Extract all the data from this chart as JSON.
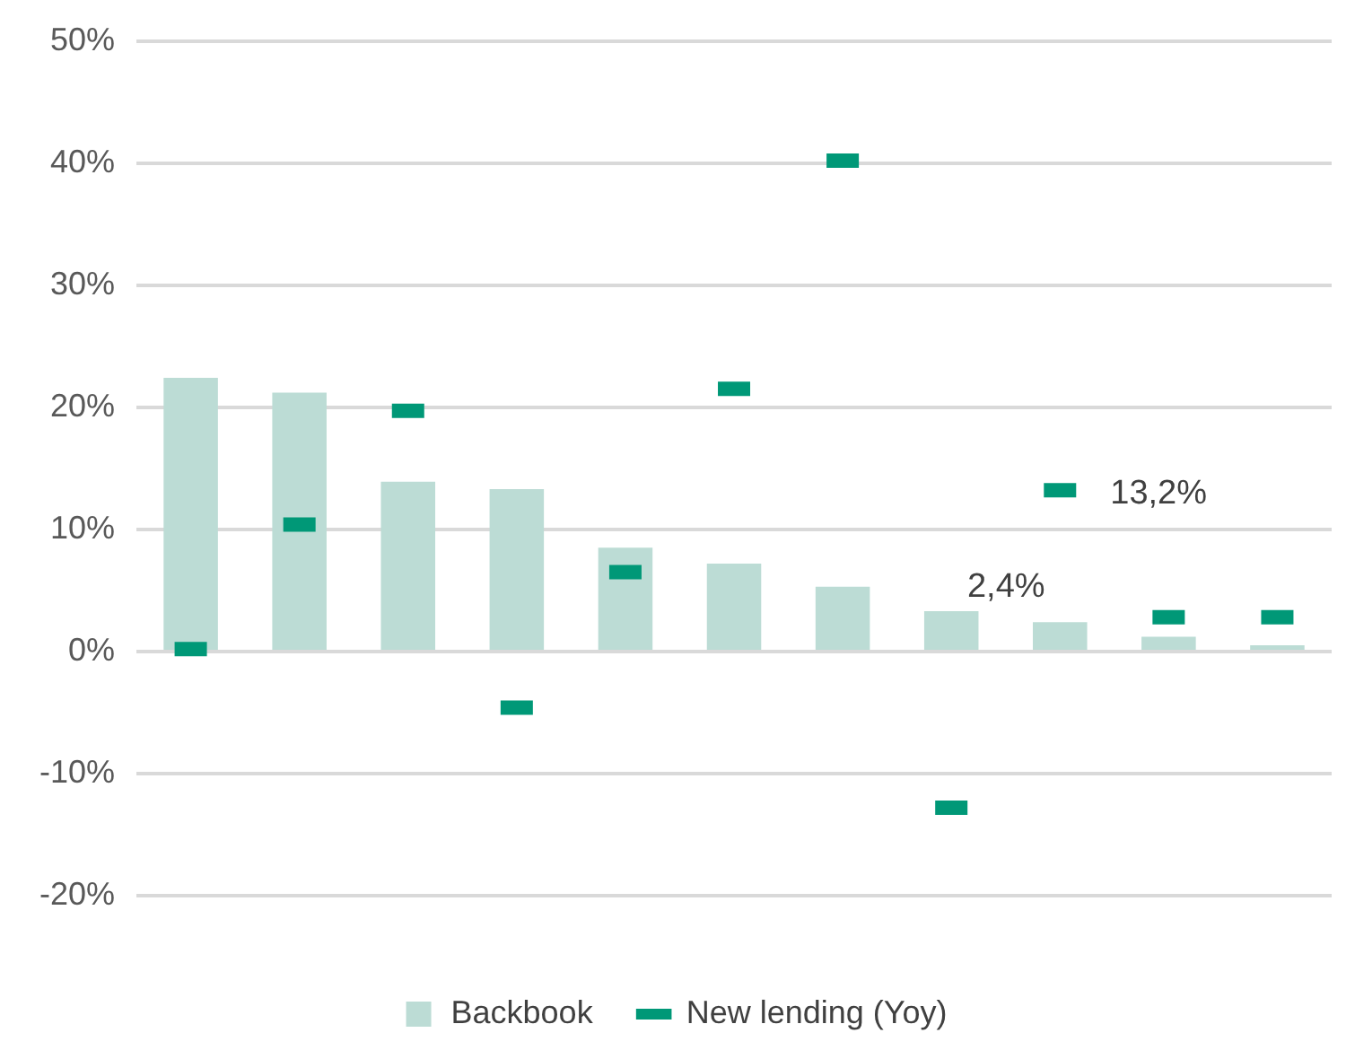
{
  "chart_data": {
    "type": "bar",
    "categories": [
      null,
      null,
      null,
      null,
      null,
      null,
      null,
      null,
      null,
      null,
      null
    ],
    "series": [
      {
        "name": "Backbook",
        "color": "#bcdcd5",
        "values": [
          22.4,
          21.2,
          13.9,
          13.3,
          8.5,
          7.2,
          5.3,
          3.3,
          2.4,
          1.2,
          0.5
        ],
        "value_labels": [
          null,
          null,
          null,
          null,
          null,
          null,
          null,
          null,
          "2,4%",
          null,
          null
        ]
      },
      {
        "name": "New lending (Yoy)",
        "type": "scatter",
        "color": "#009877",
        "values": [
          0.2,
          10.4,
          19.7,
          -4.6,
          6.5,
          21.5,
          40.2,
          -12.8,
          13.2,
          2.8,
          2.8
        ],
        "value_labels": [
          null,
          null,
          null,
          null,
          null,
          null,
          null,
          null,
          "13,2%",
          null,
          null
        ]
      }
    ],
    "ylim": [
      -20,
      50
    ],
    "yticks": [
      {
        "value": -20,
        "label": "-20%"
      },
      {
        "value": -10,
        "label": "-10%"
      },
      {
        "value": 0,
        "label": "0%"
      },
      {
        "value": 10,
        "label": "10%"
      },
      {
        "value": 20,
        "label": "20%"
      },
      {
        "value": 30,
        "label": "30%"
      },
      {
        "value": 40,
        "label": "40%"
      },
      {
        "value": 50,
        "label": "50%"
      }
    ],
    "grid": "y",
    "legend": "bottom",
    "tick_labels": "y"
  }
}
